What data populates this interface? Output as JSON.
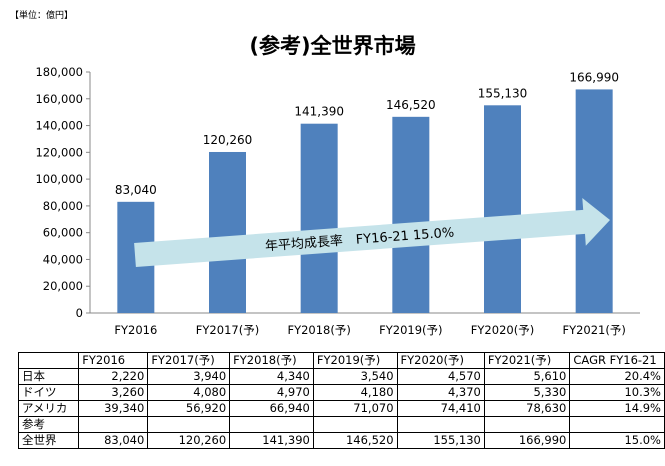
{
  "unit_note": "【単位：億円】",
  "chart_data": {
    "type": "bar",
    "title": "(参考)全世界市場",
    "categories": [
      "FY2016",
      "FY2017(予)",
      "FY2018(予)",
      "FY2019(予)",
      "FY2020(予)",
      "FY2021(予)"
    ],
    "values": [
      83040,
      120260,
      141390,
      146520,
      155130,
      166990
    ],
    "value_labels": [
      "83,040",
      "120,260",
      "141,390",
      "146,520",
      "155,130",
      "166,990"
    ],
    "yticks": [
      "0",
      "20,000",
      "40,000",
      "60,000",
      "80,000",
      "100,000",
      "120,000",
      "140,000",
      "160,000",
      "180,000"
    ],
    "ylim": [
      0,
      180000
    ],
    "bar_color": "#4f81bd",
    "arrow_color": "#c5e3ea",
    "arrow_label": "年平均成長率　FY16-21 15.0%",
    "grid": false,
    "legend": "none"
  },
  "table": {
    "header": [
      "",
      "FY2016",
      "FY2017(予)",
      "FY2018(予)",
      "FY2019(予)",
      "FY2020(予)",
      "FY2021(予)",
      "CAGR FY16-21"
    ],
    "rows": [
      [
        "日本",
        "2,220",
        "3,940",
        "4,340",
        "3,540",
        "4,570",
        "5,610",
        "20.4%"
      ],
      [
        "ドイツ",
        "3,260",
        "4,080",
        "4,970",
        "4,180",
        "4,370",
        "5,330",
        "10.3%"
      ],
      [
        "アメリカ",
        "39,340",
        "56,920",
        "66,940",
        "71,070",
        "74,410",
        "78,630",
        "14.9%"
      ],
      [
        "参考",
        "",
        "",
        "",
        "",
        "",
        "",
        ""
      ],
      [
        "全世界",
        "83,040",
        "120,260",
        "141,390",
        "146,520",
        "155,130",
        "166,990",
        "15.0%"
      ]
    ]
  }
}
